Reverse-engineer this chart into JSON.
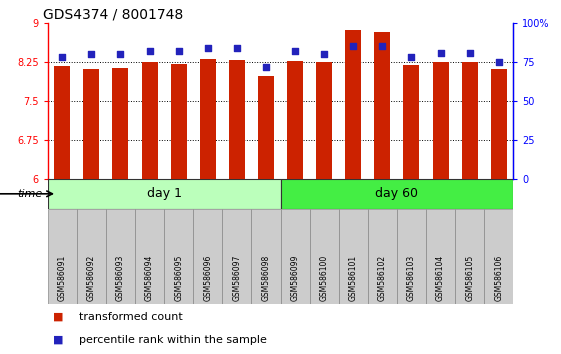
{
  "title": "GDS4374 / 8001748",
  "samples": [
    "GSM586091",
    "GSM586092",
    "GSM586093",
    "GSM586094",
    "GSM586095",
    "GSM586096",
    "GSM586097",
    "GSM586098",
    "GSM586099",
    "GSM586100",
    "GSM586101",
    "GSM586102",
    "GSM586103",
    "GSM586104",
    "GSM586105",
    "GSM586106"
  ],
  "bar_values": [
    8.17,
    8.12,
    8.13,
    8.24,
    8.22,
    8.3,
    8.29,
    7.98,
    8.27,
    8.24,
    8.87,
    8.82,
    8.19,
    8.25,
    8.25,
    8.12
  ],
  "dot_values": [
    78,
    80,
    80,
    82,
    82,
    84,
    84,
    72,
    82,
    80,
    85,
    85,
    78,
    81,
    81,
    75
  ],
  "bar_color": "#cc2200",
  "dot_color": "#2222bb",
  "ylim_left": [
    6,
    9
  ],
  "ylim_right": [
    0,
    100
  ],
  "yticks_left": [
    6,
    6.75,
    7.5,
    8.25,
    9
  ],
  "yticks_right": [
    0,
    25,
    50,
    75,
    100
  ],
  "ytick_labels_right": [
    "0",
    "25",
    "50",
    "75",
    "100%"
  ],
  "hlines": [
    6.75,
    7.5,
    8.25
  ],
  "groups": [
    {
      "label": "day 1",
      "start": 0,
      "end": 7,
      "color": "#bbffbb"
    },
    {
      "label": "day 60",
      "start": 8,
      "end": 15,
      "color": "#44ee44"
    }
  ],
  "legend_items": [
    {
      "color": "#cc2200",
      "label": "transformed count"
    },
    {
      "color": "#2222bb",
      "label": "percentile rank within the sample"
    }
  ],
  "bar_bottom": 6,
  "bar_width": 0.55,
  "time_label": "time",
  "bg_color": "#ffffff",
  "tick_area_color": "#cccccc",
  "title_fontsize": 10,
  "tick_fontsize": 7,
  "sample_fontsize": 5.5,
  "group_fontsize": 9,
  "legend_fontsize": 8
}
